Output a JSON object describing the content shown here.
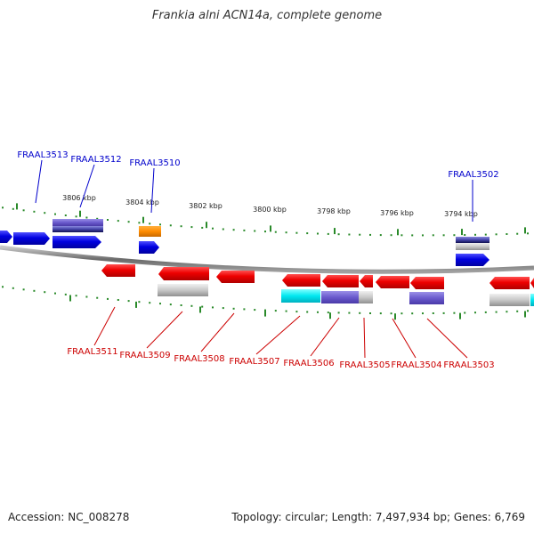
{
  "title": "Frankia alni ACN14a, complete genome",
  "accession": "Accession: NC_008278",
  "stats": "Topology: circular; Length: 7,497,934 bp; Genes: 6,769",
  "colors": {
    "forward_label": "#0000cc",
    "reverse_label": "#cc0000",
    "tick": "#2a8a2a",
    "axis": "#888888"
  },
  "kbp_labels": [
    "3806 kbp",
    "3804 kbp",
    "3802 kbp",
    "3800 kbp",
    "3798 kbp",
    "3796 kbp",
    "3794 kbp"
  ],
  "forward_gene_labels": [
    "FRAAL3513",
    "FRAAL3512",
    "FRAAL3510",
    "FRAAL3502"
  ],
  "reverse_gene_labels": [
    "FRAAL3511",
    "FRAAL3509",
    "FRAAL3508",
    "FRAAL3507",
    "FRAAL3506",
    "FRAAL3505",
    "FRAAL3504",
    "FRAAL3503"
  ]
}
